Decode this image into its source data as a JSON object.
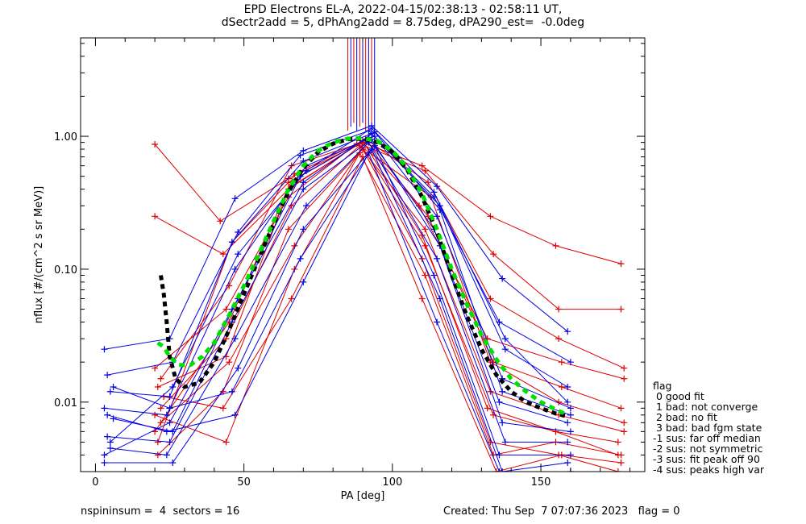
{
  "chart_data": {
    "type": "line",
    "title": "EPD Electrons EL-A, 2022-04-15/02:38:13 - 02:58:11 UT,",
    "subtitle": "dSectr2add = 5, dPhAng2add = 8.75deg, dPA290_est=  -0.0deg",
    "xlabel": "PA [deg]",
    "ylabel": "nflux [#/(cm^2 s sr MeV)]",
    "xlim": [
      -5,
      185
    ],
    "ylim": [
      0.003,
      5.5
    ],
    "yscale": "log",
    "x_ticks": [
      0,
      50,
      100,
      150
    ],
    "x_tick_labels": [
      "0",
      "50",
      "100",
      "150"
    ],
    "y_ticks": [
      0.01,
      0.1,
      1.0
    ],
    "y_tick_labels": [
      "0.01",
      "0.10",
      "1.00"
    ],
    "colors": {
      "red": "#e00000",
      "blue": "#0000e0",
      "fit_black": "#000000",
      "fit_green": "#00e000"
    },
    "series": [
      {
        "color": "red",
        "x": [
          20,
          42,
          65,
          90,
          110,
          133,
          155,
          177
        ],
        "y": [
          0.87,
          0.23,
          0.48,
          0.9,
          0.6,
          0.25,
          0.15,
          0.11
        ]
      },
      {
        "color": "red",
        "x": [
          20,
          43,
          66,
          89,
          111,
          134,
          156,
          177
        ],
        "y": [
          0.25,
          0.13,
          0.42,
          0.88,
          0.55,
          0.13,
          0.05,
          0.05
        ]
      },
      {
        "color": "red",
        "x": [
          21,
          44,
          65,
          90,
          110,
          132,
          155,
          176
        ],
        "y": [
          0.013,
          0.022,
          0.4,
          0.92,
          0.18,
          0.009,
          0.006,
          0.004
        ]
      },
      {
        "color": "red",
        "x": [
          22,
          44,
          66,
          89,
          111,
          133,
          156,
          178
        ],
        "y": [
          0.009,
          0.03,
          0.3,
          0.85,
          0.2,
          0.012,
          0.008,
          0.006
        ]
      },
      {
        "color": "red",
        "x": [
          20,
          45,
          67,
          91,
          112,
          134,
          157,
          177
        ],
        "y": [
          0.006,
          0.04,
          0.52,
          0.95,
          0.25,
          0.02,
          0.013,
          0.009
        ]
      },
      {
        "color": "red",
        "x": [
          21,
          43,
          65,
          90,
          110,
          133,
          156,
          176
        ],
        "y": [
          0.004,
          0.012,
          0.2,
          0.8,
          0.12,
          0.005,
          0.004,
          0.003
        ]
      },
      {
        "color": "red",
        "x": [
          22,
          45,
          66,
          90,
          109,
          132,
          157,
          178
        ],
        "y": [
          0.015,
          0.075,
          0.6,
          0.9,
          0.3,
          0.03,
          0.02,
          0.015
        ]
      },
      {
        "color": "red",
        "x": [
          20,
          44,
          67,
          89,
          111,
          134,
          155,
          177
        ],
        "y": [
          0.008,
          0.005,
          0.1,
          0.75,
          0.09,
          0.004,
          0.005,
          0.004
        ]
      },
      {
        "color": "red",
        "x": [
          21,
          46,
          65,
          91,
          112,
          133,
          156,
          178
        ],
        "y": [
          0.005,
          0.16,
          0.45,
          0.95,
          0.45,
          0.06,
          0.03,
          0.018
        ]
      },
      {
        "color": "red",
        "x": [
          23,
          43,
          66,
          90,
          110,
          135,
          157,
          177
        ],
        "y": [
          0.011,
          0.009,
          0.06,
          0.7,
          0.06,
          0.003,
          0.004,
          0.0035
        ]
      },
      {
        "color": "red",
        "x": [
          20,
          44,
          65,
          88,
          113,
          133,
          156,
          178
        ],
        "y": [
          0.018,
          0.05,
          0.35,
          0.88,
          0.35,
          0.02,
          0.01,
          0.007
        ]
      },
      {
        "color": "red",
        "x": [
          22,
          45,
          67,
          90,
          111,
          134,
          155,
          176
        ],
        "y": [
          0.007,
          0.02,
          0.15,
          0.82,
          0.15,
          0.008,
          0.006,
          0.005
        ]
      },
      {
        "color": "blue",
        "x": [
          3,
          25,
          47,
          70,
          93,
          115,
          137,
          159
        ],
        "y": [
          0.025,
          0.03,
          0.34,
          0.78,
          1.2,
          0.42,
          0.085,
          0.034
        ]
      },
      {
        "color": "blue",
        "x": [
          4,
          26,
          48,
          69,
          92,
          114,
          136,
          160
        ],
        "y": [
          0.016,
          0.02,
          0.19,
          0.72,
          1.1,
          0.35,
          0.04,
          0.02
        ]
      },
      {
        "color": "blue",
        "x": [
          5,
          25,
          46,
          70,
          93,
          116,
          138,
          159
        ],
        "y": [
          0.012,
          0.011,
          0.16,
          0.65,
          1.05,
          0.3,
          0.025,
          0.013
        ]
      },
      {
        "color": "blue",
        "x": [
          3,
          24,
          47,
          71,
          94,
          115,
          137,
          160
        ],
        "y": [
          0.009,
          0.008,
          0.1,
          0.6,
          1.0,
          0.25,
          0.015,
          0.009
        ]
      },
      {
        "color": "blue",
        "x": [
          6,
          26,
          48,
          69,
          92,
          114,
          136,
          159
        ],
        "y": [
          0.0075,
          0.006,
          0.06,
          0.5,
          0.98,
          0.2,
          0.01,
          0.007
        ]
      },
      {
        "color": "blue",
        "x": [
          4,
          25,
          46,
          70,
          93,
          116,
          137,
          160
        ],
        "y": [
          0.0055,
          0.005,
          0.04,
          0.4,
          0.95,
          0.15,
          0.007,
          0.006
        ]
      },
      {
        "color": "blue",
        "x": [
          5,
          24,
          47,
          71,
          92,
          115,
          138,
          159
        ],
        "y": [
          0.0045,
          0.004,
          0.03,
          0.3,
          0.9,
          0.12,
          0.005,
          0.005
        ]
      },
      {
        "color": "blue",
        "x": [
          3,
          26,
          48,
          70,
          94,
          114,
          136,
          160
        ],
        "y": [
          0.0035,
          0.0035,
          0.018,
          0.2,
          0.85,
          0.09,
          0.004,
          0.004
        ]
      },
      {
        "color": "blue",
        "x": [
          6,
          25,
          46,
          69,
          93,
          116,
          137,
          159
        ],
        "y": [
          0.013,
          0.009,
          0.012,
          0.12,
          0.8,
          0.06,
          0.003,
          0.0035
        ]
      },
      {
        "color": "blue",
        "x": [
          4,
          24,
          47,
          70,
          92,
          115,
          136,
          160
        ],
        "y": [
          0.008,
          0.006,
          0.008,
          0.08,
          0.75,
          0.04,
          0.003,
          0.003
        ]
      },
      {
        "color": "blue",
        "x": [
          5,
          26,
          48,
          71,
          93,
          114,
          138,
          159
        ],
        "y": [
          0.005,
          0.013,
          0.13,
          0.55,
          1.15,
          0.38,
          0.03,
          0.01
        ]
      },
      {
        "color": "blue",
        "x": [
          3,
          25,
          46,
          70,
          94,
          116,
          137,
          160
        ],
        "y": [
          0.004,
          0.007,
          0.05,
          0.45,
          1.08,
          0.28,
          0.012,
          0.008
        ]
      }
    ],
    "spikes_x": [
      85,
      86,
      87,
      88,
      89,
      90,
      91,
      92,
      93,
      94
    ],
    "fit_black": {
      "x": [
        22,
        23,
        24,
        25,
        27,
        30,
        35,
        40,
        45,
        50,
        55,
        60,
        65,
        70,
        75,
        80,
        85,
        90,
        95,
        100,
        105,
        110,
        115,
        120,
        125,
        130,
        135,
        140,
        145,
        150,
        155,
        159
      ],
      "y": [
        0.09,
        0.065,
        0.04,
        0.022,
        0.015,
        0.013,
        0.014,
        0.02,
        0.035,
        0.065,
        0.12,
        0.22,
        0.38,
        0.58,
        0.76,
        0.88,
        0.95,
        0.96,
        0.9,
        0.76,
        0.56,
        0.35,
        0.19,
        0.09,
        0.045,
        0.025,
        0.016,
        0.012,
        0.01,
        0.009,
        0.0082,
        0.0078
      ]
    },
    "fit_green": {
      "x": [
        21,
        23,
        25,
        28,
        32,
        36,
        40,
        45,
        50,
        55,
        60,
        65,
        70,
        75,
        80,
        85,
        90,
        95,
        100,
        105,
        110,
        115,
        120,
        125,
        130,
        135,
        140,
        145,
        150,
        155,
        159
      ],
      "y": [
        0.028,
        0.026,
        0.022,
        0.019,
        0.019,
        0.022,
        0.028,
        0.045,
        0.075,
        0.13,
        0.23,
        0.4,
        0.6,
        0.78,
        0.9,
        0.96,
        0.97,
        0.92,
        0.78,
        0.58,
        0.37,
        0.2,
        0.1,
        0.055,
        0.032,
        0.021,
        0.015,
        0.012,
        0.01,
        0.0088,
        0.008
      ]
    }
  },
  "legend": {
    "title": "flag",
    "items": [
      " 0 good fit",
      " 1 bad: not converge",
      " 2 bad: no fit",
      " 3 bad: bad fgm state",
      "-1 sus: far off median",
      "-2 sus: not symmetric",
      "-3 sus: fit peak off 90",
      "-4 sus: peaks high var"
    ]
  },
  "footer": {
    "left": "nspininsum =  4  sectors = 16",
    "right": "Created: Thu Sep  7 07:07:36 2023   flag = 0"
  }
}
